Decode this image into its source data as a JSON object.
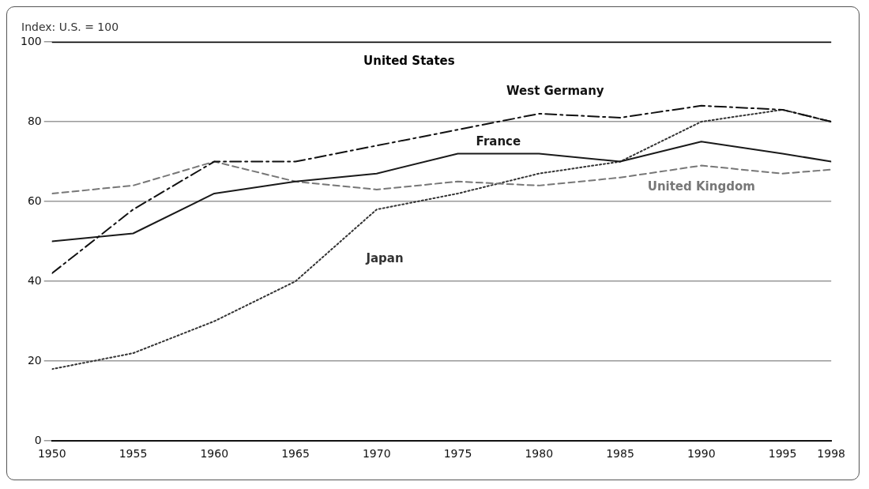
{
  "chart_data": {
    "type": "line",
    "ylabel": "Index: U.S. = 100",
    "x": [
      1950,
      1955,
      1960,
      1965,
      1970,
      1975,
      1980,
      1985,
      1990,
      1995,
      1998
    ],
    "xlim": [
      1950,
      1998
    ],
    "xticks": [
      1950,
      1955,
      1960,
      1965,
      1970,
      1975,
      1980,
      1985,
      1990,
      1995,
      1998
    ],
    "ylim": [
      0,
      100
    ],
    "yticks": [
      0,
      20,
      40,
      60,
      80,
      100
    ],
    "grid": "y",
    "legend": false,
    "marker": "none",
    "series": [
      {
        "name": "United States",
        "color": "#000000",
        "line_style": "solid",
        "values": [
          100,
          100,
          100,
          100,
          100,
          100,
          100,
          100,
          100,
          100,
          100
        ]
      },
      {
        "name": "West Germany",
        "color": "#111111",
        "line_style": "dashdot",
        "values": [
          42,
          58,
          70,
          70,
          74,
          78,
          82,
          81,
          84,
          83,
          80
        ]
      },
      {
        "name": "France",
        "color": "#1a1a1a",
        "line_style": "solid",
        "values": [
          50,
          52,
          62,
          65,
          67,
          72,
          72,
          70,
          75,
          72,
          70
        ]
      },
      {
        "name": "United Kingdom",
        "color": "#777777",
        "line_style": "dashed",
        "values": [
          62,
          64,
          70,
          65,
          63,
          65,
          64,
          66,
          69,
          67,
          68
        ]
      },
      {
        "name": "Japan",
        "color": "#333333",
        "line_style": "dotted",
        "values": [
          18,
          22,
          30,
          40,
          58,
          62,
          67,
          70,
          80,
          83,
          80
        ]
      }
    ]
  }
}
